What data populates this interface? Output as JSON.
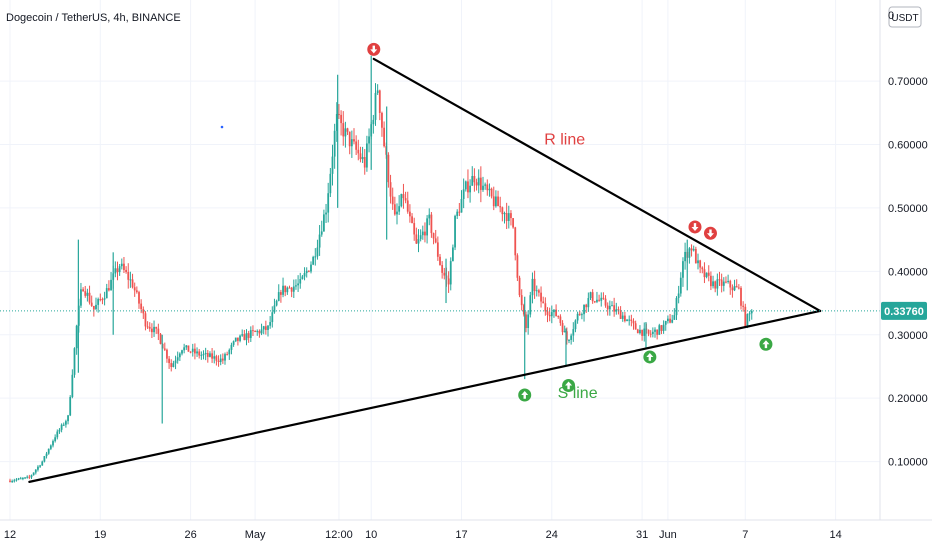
{
  "chart_data": {
    "type": "candlestick",
    "title": "Dogecoin / TetherUS, 4h, BINANCE",
    "currency_label": "USDT",
    "ylim": [
      0.0,
      0.82
    ],
    "y_ticks": [
      {
        "value": 0.1,
        "label": "0.10000"
      },
      {
        "value": 0.2,
        "label": "0.20000"
      },
      {
        "value": 0.3,
        "label": "0.30000"
      },
      {
        "value": 0.4,
        "label": "0.40000"
      },
      {
        "value": 0.5,
        "label": "0.50000"
      },
      {
        "value": 0.6,
        "label": "0.60000"
      },
      {
        "value": 0.7,
        "label": "0.70000"
      }
    ],
    "top_tick_label": "0",
    "x_ticks": [
      {
        "day": 0,
        "label": "12"
      },
      {
        "day": 7,
        "label": "19"
      },
      {
        "day": 14,
        "label": "26"
      },
      {
        "day": 19,
        "label": "May"
      },
      {
        "day": 25.5,
        "label": "12:00"
      },
      {
        "day": 28,
        "label": "10"
      },
      {
        "day": 35,
        "label": "17"
      },
      {
        "day": 42,
        "label": "24"
      },
      {
        "day": 49,
        "label": "31"
      },
      {
        "day": 51,
        "label": "Jun"
      },
      {
        "day": 57,
        "label": "7"
      },
      {
        "day": 64,
        "label": "14"
      }
    ],
    "last_price": 0.3376,
    "last_price_label": "0.33760",
    "colors": {
      "up": "#26a69a",
      "down": "#ef5350",
      "price_line": "#26a69a"
    },
    "price_path": [
      [
        0,
        0.07
      ],
      [
        1.5,
        0.075
      ],
      [
        2.5,
        0.1
      ],
      [
        3.5,
        0.14
      ],
      [
        4.5,
        0.17
      ],
      [
        5.2,
        0.32
      ],
      [
        5.6,
        0.38
      ],
      [
        6.5,
        0.34
      ],
      [
        7.5,
        0.37
      ],
      [
        8.5,
        0.41
      ],
      [
        9.5,
        0.38
      ],
      [
        10.5,
        0.32
      ],
      [
        11.5,
        0.3
      ],
      [
        12.5,
        0.25
      ],
      [
        13.3,
        0.28
      ],
      [
        14.5,
        0.27
      ],
      [
        16.5,
        0.26
      ],
      [
        17.5,
        0.29
      ],
      [
        18.5,
        0.3
      ],
      [
        20,
        0.31
      ],
      [
        21,
        0.37
      ],
      [
        22.5,
        0.38
      ],
      [
        23.5,
        0.42
      ],
      [
        24.5,
        0.5
      ],
      [
        25.3,
        0.64
      ],
      [
        26.5,
        0.6
      ],
      [
        27.5,
        0.57
      ],
      [
        28.5,
        0.69
      ],
      [
        29,
        0.6
      ],
      [
        29.8,
        0.48
      ],
      [
        30.5,
        0.52
      ],
      [
        31.5,
        0.44
      ],
      [
        32.5,
        0.48
      ],
      [
        33.5,
        0.4
      ],
      [
        34,
        0.38
      ],
      [
        34.5,
        0.48
      ],
      [
        35.3,
        0.53
      ],
      [
        36,
        0.55
      ],
      [
        37.5,
        0.51
      ],
      [
        38.5,
        0.49
      ],
      [
        39,
        0.47
      ],
      [
        39.5,
        0.36
      ],
      [
        40,
        0.31
      ],
      [
        40.5,
        0.38
      ],
      [
        41.5,
        0.34
      ],
      [
        42.5,
        0.33
      ],
      [
        43.2,
        0.29
      ],
      [
        44,
        0.33
      ],
      [
        45,
        0.36
      ],
      [
        46,
        0.35
      ],
      [
        47.5,
        0.33
      ],
      [
        48.5,
        0.31
      ],
      [
        49.5,
        0.3
      ],
      [
        50.5,
        0.31
      ],
      [
        51.5,
        0.33
      ],
      [
        52.2,
        0.42
      ],
      [
        52.8,
        0.44
      ],
      [
        53.5,
        0.4
      ],
      [
        54.5,
        0.38
      ],
      [
        55.5,
        0.38
      ],
      [
        56.5,
        0.37
      ],
      [
        57,
        0.32
      ],
      [
        57.5,
        0.3376
      ]
    ],
    "spikes": [
      {
        "day": 5.3,
        "high": 0.45,
        "low": 0.24
      },
      {
        "day": 8,
        "high": 0.43,
        "low": 0.3
      },
      {
        "day": 11.8,
        "high": 0.3,
        "low": 0.16
      },
      {
        "day": 25.4,
        "high": 0.71,
        "low": 0.5
      },
      {
        "day": 28,
        "high": 0.74,
        "low": 0.56
      },
      {
        "day": 29.2,
        "high": 0.66,
        "low": 0.45
      },
      {
        "day": 33.8,
        "high": 0.42,
        "low": 0.35
      },
      {
        "day": 39.9,
        "high": 0.36,
        "low": 0.23
      },
      {
        "day": 43.1,
        "high": 0.31,
        "low": 0.25
      },
      {
        "day": 49.3,
        "high": 0.32,
        "low": 0.28
      },
      {
        "day": 52.5,
        "high": 0.45,
        "low": 0.37
      }
    ],
    "trendlines": [
      {
        "name": "R line",
        "from": {
          "day": 28.2,
          "value": 0.735
        },
        "to": {
          "day": 62.8,
          "value": 0.3376
        }
      },
      {
        "name": "S line",
        "from": {
          "day": 1.5,
          "value": 0.068
        },
        "to": {
          "day": 62.8,
          "value": 0.3376
        }
      }
    ],
    "annotations": [
      {
        "text": "R line",
        "day": 43,
        "value": 0.6,
        "color": "#e04040"
      },
      {
        "text": "S line",
        "day": 44,
        "value": 0.2,
        "color": "#3aa845"
      }
    ],
    "markers": [
      {
        "type": "down",
        "day": 28.2,
        "value": 0.75,
        "color": "#e04040"
      },
      {
        "type": "down",
        "day": 53.1,
        "value": 0.47,
        "color": "#e04040"
      },
      {
        "type": "down",
        "day": 54.3,
        "value": 0.46,
        "color": "#e04040"
      },
      {
        "type": "up",
        "day": 39.9,
        "value": 0.205,
        "color": "#3aa845"
      },
      {
        "type": "up",
        "day": 43.3,
        "value": 0.22,
        "color": "#3aa845"
      },
      {
        "type": "up",
        "day": 49.6,
        "value": 0.265,
        "color": "#3aa845"
      },
      {
        "type": "up",
        "day": 58.6,
        "value": 0.285,
        "color": "#3aa845"
      }
    ]
  }
}
